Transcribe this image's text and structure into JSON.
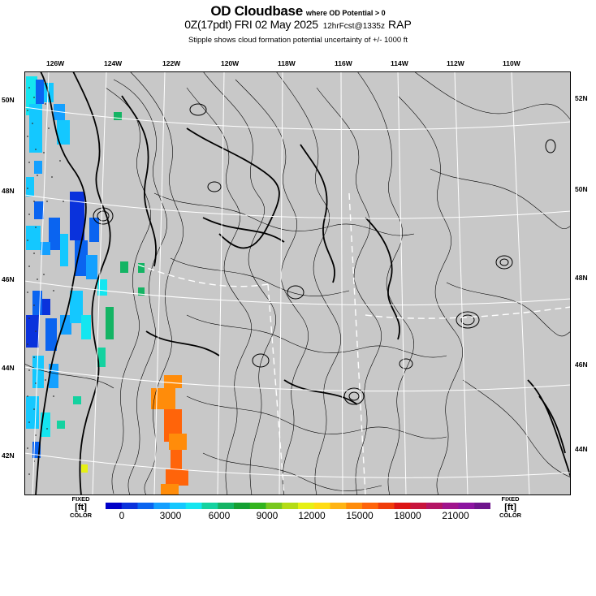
{
  "title": {
    "main": "OD Cloudbase",
    "note": "where OD Potential > 0",
    "valid": "0Z(17pdt) FRI 02 May 2025",
    "fcst": "12hrFcst@1335z",
    "model": "RAP",
    "subtitle": "Stipple shows cloud formation potential uncertainty of +/- 1000 ft"
  },
  "longitude_labels": [
    "126W",
    "124W",
    "122W",
    "120W",
    "118W",
    "116W",
    "114W",
    "112W",
    "110W"
  ],
  "latitude_labels_left": [
    "50N",
    "48N",
    "46N",
    "44N",
    "42N"
  ],
  "latitude_labels_right": [
    "52N",
    "50N",
    "48N",
    "46N",
    "44N"
  ],
  "colorbar": {
    "left_label": {
      "top": "FIXED",
      "unit": "[ft]",
      "bottom": "COLOR"
    },
    "right_label": {
      "top": "FIXED",
      "unit": "[ft]",
      "bottom": "COLOR"
    },
    "ticks": [
      "0",
      "3000",
      "6000",
      "9000",
      "12000",
      "15000",
      "18000",
      "21000"
    ],
    "colors": [
      "#0000c8",
      "#0a32dc",
      "#0a64f0",
      "#14a0ff",
      "#14c8ff",
      "#14e6f0",
      "#14d2a0",
      "#14b464",
      "#14a032",
      "#32b41e",
      "#78c81e",
      "#b4dc14",
      "#e6f014",
      "#ffdc14",
      "#ffb414",
      "#ff8c0a",
      "#ff640a",
      "#f03c0a",
      "#dc1414",
      "#c8143c",
      "#b41464",
      "#a0148c",
      "#8c14a0",
      "#6e148c"
    ]
  },
  "map": {
    "background_color": "#c8c8c8",
    "grid_color": "#ffffff"
  }
}
